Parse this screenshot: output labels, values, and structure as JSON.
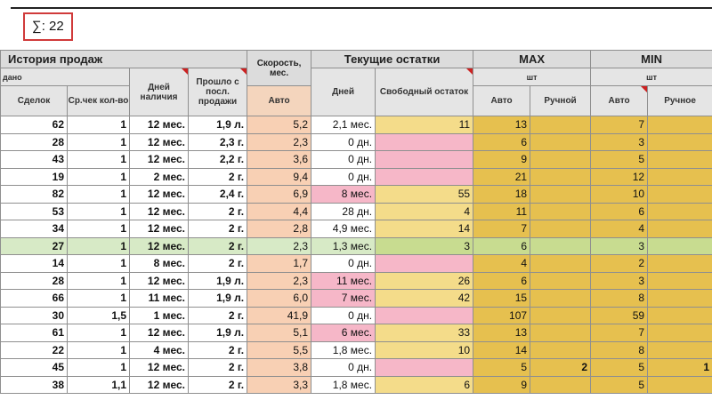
{
  "summary": {
    "text": "∑: 22"
  },
  "headers": {
    "group_history": "История продаж",
    "group_speed": "Скорость, мес.",
    "group_stock": "Текущие остатки",
    "group_max": "MAX",
    "group_min": "MIN",
    "sub_sold": "дано",
    "sub_unit_max": "шт",
    "sub_unit_min": "шт",
    "col_deals": "Сделок",
    "col_avg_check": "Ср.чек кол-во",
    "col_days_avail": "Дней наличия",
    "col_since_last": "Прошло с посл. продажи",
    "col_speed_auto": "Авто",
    "col_days": "Дней",
    "col_free": "Свободный остаток",
    "col_max_auto": "Авто",
    "col_max_manual": "Ручной",
    "col_min_auto": "Авто",
    "col_min_manual": "Ручное"
  },
  "rows": [
    {
      "deals": "62",
      "avg": "1",
      "days_avail": "12 мес.",
      "since": "1,9 л.",
      "speed": "5,2",
      "days": "2,1 мес.",
      "days_pink": false,
      "free": "11",
      "free_pink": false,
      "max_auto": "13",
      "max_manual": "",
      "min_auto": "7",
      "min_manual": ""
    },
    {
      "deals": "28",
      "avg": "1",
      "days_avail": "12 мес.",
      "since": "2,3 г.",
      "speed": "2,3",
      "days": "0 дн.",
      "days_pink": false,
      "free": "",
      "free_pink": true,
      "max_auto": "6",
      "max_manual": "",
      "min_auto": "3",
      "min_manual": ""
    },
    {
      "deals": "43",
      "avg": "1",
      "days_avail": "12 мес.",
      "since": "2,2 г.",
      "speed": "3,6",
      "days": "0 дн.",
      "days_pink": false,
      "free": "",
      "free_pink": true,
      "max_auto": "9",
      "max_manual": "",
      "min_auto": "5",
      "min_manual": ""
    },
    {
      "deals": "19",
      "avg": "1",
      "days_avail": "2 мес.",
      "since": "2 г.",
      "speed": "9,4",
      "days": "0 дн.",
      "days_pink": false,
      "free": "",
      "free_pink": true,
      "max_auto": "21",
      "max_manual": "",
      "min_auto": "12",
      "min_manual": ""
    },
    {
      "deals": "82",
      "avg": "1",
      "days_avail": "12 мес.",
      "since": "2,4 г.",
      "speed": "6,9",
      "days": "8 мес.",
      "days_pink": true,
      "free": "55",
      "free_pink": false,
      "max_auto": "18",
      "max_manual": "",
      "min_auto": "10",
      "min_manual": ""
    },
    {
      "deals": "53",
      "avg": "1",
      "days_avail": "12 мес.",
      "since": "2 г.",
      "speed": "4,4",
      "days": "28 дн.",
      "days_pink": false,
      "free": "4",
      "free_pink": false,
      "max_auto": "11",
      "max_manual": "",
      "min_auto": "6",
      "min_manual": ""
    },
    {
      "deals": "34",
      "avg": "1",
      "days_avail": "12 мес.",
      "since": "2 г.",
      "speed": "2,8",
      "days": "4,9 мес.",
      "days_pink": false,
      "free": "14",
      "free_pink": false,
      "max_auto": "7",
      "max_manual": "",
      "min_auto": "4",
      "min_manual": ""
    },
    {
      "deals": "27",
      "avg": "1",
      "days_avail": "12 мес.",
      "since": "2 г.",
      "speed": "2,3",
      "days": "1,3 мес.",
      "days_pink": false,
      "free": "3",
      "free_pink": false,
      "max_auto": "6",
      "max_manual": "",
      "min_auto": "3",
      "min_manual": "",
      "selected": true
    },
    {
      "deals": "14",
      "avg": "1",
      "days_avail": "8 мес.",
      "since": "2 г.",
      "speed": "1,7",
      "days": "0 дн.",
      "days_pink": false,
      "free": "",
      "free_pink": true,
      "max_auto": "4",
      "max_manual": "",
      "min_auto": "2",
      "min_manual": ""
    },
    {
      "deals": "28",
      "avg": "1",
      "days_avail": "12 мес.",
      "since": "1,9 л.",
      "speed": "2,3",
      "days": "11 мес.",
      "days_pink": true,
      "free": "26",
      "free_pink": false,
      "max_auto": "6",
      "max_manual": "",
      "min_auto": "3",
      "min_manual": ""
    },
    {
      "deals": "66",
      "avg": "1",
      "days_avail": "11 мес.",
      "since": "1,9 л.",
      "speed": "6,0",
      "days": "7 мес.",
      "days_pink": true,
      "free": "42",
      "free_pink": false,
      "max_auto": "15",
      "max_manual": "",
      "min_auto": "8",
      "min_manual": ""
    },
    {
      "deals": "30",
      "avg": "1,5",
      "days_avail": "1 мес.",
      "since": "2 г.",
      "speed": "41,9",
      "days": "0 дн.",
      "days_pink": false,
      "free": "",
      "free_pink": true,
      "max_auto": "107",
      "max_manual": "",
      "min_auto": "59",
      "min_manual": ""
    },
    {
      "deals": "61",
      "avg": "1",
      "days_avail": "12 мес.",
      "since": "1,9 л.",
      "speed": "5,1",
      "days": "6 мес.",
      "days_pink": true,
      "free": "33",
      "free_pink": false,
      "max_auto": "13",
      "max_manual": "",
      "min_auto": "7",
      "min_manual": ""
    },
    {
      "deals": "22",
      "avg": "1",
      "days_avail": "4 мес.",
      "since": "2 г.",
      "speed": "5,5",
      "days": "1,8 мес.",
      "days_pink": false,
      "free": "10",
      "free_pink": false,
      "max_auto": "14",
      "max_manual": "",
      "min_auto": "8",
      "min_manual": ""
    },
    {
      "deals": "45",
      "avg": "1",
      "days_avail": "12 мес.",
      "since": "2 г.",
      "speed": "3,8",
      "days": "0 дн.",
      "days_pink": false,
      "free": "",
      "free_pink": true,
      "max_auto": "5",
      "max_manual": "2",
      "min_auto": "5",
      "min_manual": "1"
    },
    {
      "deals": "38",
      "avg": "1,1",
      "days_avail": "12 мес.",
      "since": "2 г.",
      "speed": "3,3",
      "days": "1,8 мес.",
      "days_pink": false,
      "free": "6",
      "free_pink": false,
      "max_auto": "9",
      "max_manual": "",
      "min_auto": "5",
      "min_manual": ""
    }
  ]
}
